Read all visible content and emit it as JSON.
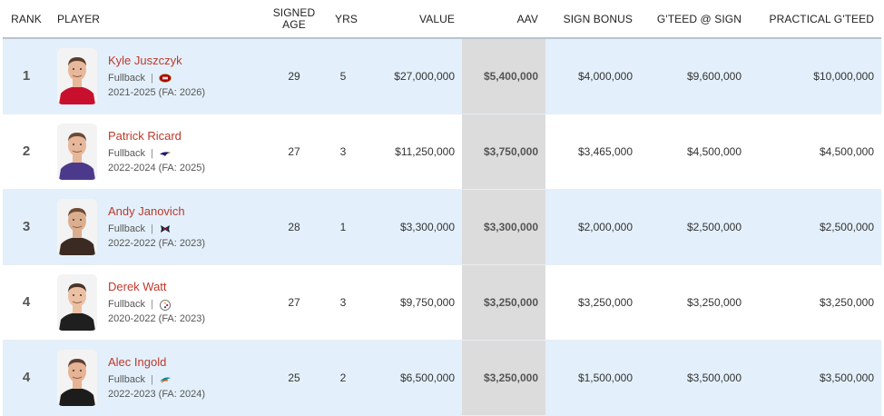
{
  "headers": {
    "rank": "RANK",
    "player": "PLAYER",
    "signed_age": "SIGNED AGE",
    "yrs": "YRS",
    "value": "VALUE",
    "aav": "AAV",
    "sign_bonus": "SIGN BONUS",
    "gteed_sign": "G'TEED @ SIGN",
    "practical_gteed": "PRACTICAL G'TEED"
  },
  "rows": [
    {
      "rank": "1",
      "name": "Kyle Juszczyk",
      "position": "Fullback",
      "team_logo": "49ers-logo-icon",
      "years": "2021-2025 (FA: 2026)",
      "age": "29",
      "yrs": "5",
      "value": "$27,000,000",
      "aav": "$5,400,000",
      "sign_bonus": "$4,000,000",
      "gteed_sign": "$9,600,000",
      "practical_gteed": "$10,000,000",
      "jersey_color": "#c8102e",
      "skin": "#e8b89a",
      "hair": "#5a3d2b"
    },
    {
      "rank": "2",
      "name": "Patrick Ricard",
      "position": "Fullback",
      "team_logo": "ravens-logo-icon",
      "years": "2022-2024 (FA: 2025)",
      "age": "27",
      "yrs": "3",
      "value": "$11,250,000",
      "aav": "$3,750,000",
      "sign_bonus": "$3,465,000",
      "gteed_sign": "$4,500,000",
      "practical_gteed": "$4,500,000",
      "jersey_color": "#4b3a8c",
      "skin": "#e7b79a",
      "hair": "#6b4a33"
    },
    {
      "rank": "3",
      "name": "Andy Janovich",
      "position": "Fullback",
      "team_logo": "texans-logo-icon",
      "years": "2022-2022 (FA: 2023)",
      "age": "28",
      "yrs": "1",
      "value": "$3,300,000",
      "aav": "$3,300,000",
      "sign_bonus": "$2,000,000",
      "gteed_sign": "$2,500,000",
      "practical_gteed": "$2,500,000",
      "jersey_color": "#3a2a22",
      "skin": "#dcae90",
      "hair": "#6e4b32"
    },
    {
      "rank": "4",
      "name": "Derek Watt",
      "position": "Fullback",
      "team_logo": "steelers-logo-icon",
      "years": "2020-2022 (FA: 2023)",
      "age": "27",
      "yrs": "3",
      "value": "$9,750,000",
      "aav": "$3,250,000",
      "sign_bonus": "$3,250,000",
      "gteed_sign": "$3,250,000",
      "practical_gteed": "$3,250,000",
      "jersey_color": "#1f1f1f",
      "skin": "#ebc0a3",
      "hair": "#4a3526"
    },
    {
      "rank": "4",
      "name": "Alec Ingold",
      "position": "Fullback",
      "team_logo": "dolphins-logo-icon",
      "years": "2022-2023 (FA: 2024)",
      "age": "25",
      "yrs": "2",
      "value": "$6,500,000",
      "aav": "$3,250,000",
      "sign_bonus": "$1,500,000",
      "gteed_sign": "$3,500,000",
      "practical_gteed": "$3,500,000",
      "jersey_color": "#1c1c1c",
      "skin": "#e6b394",
      "hair": "#5e4030"
    }
  ]
}
